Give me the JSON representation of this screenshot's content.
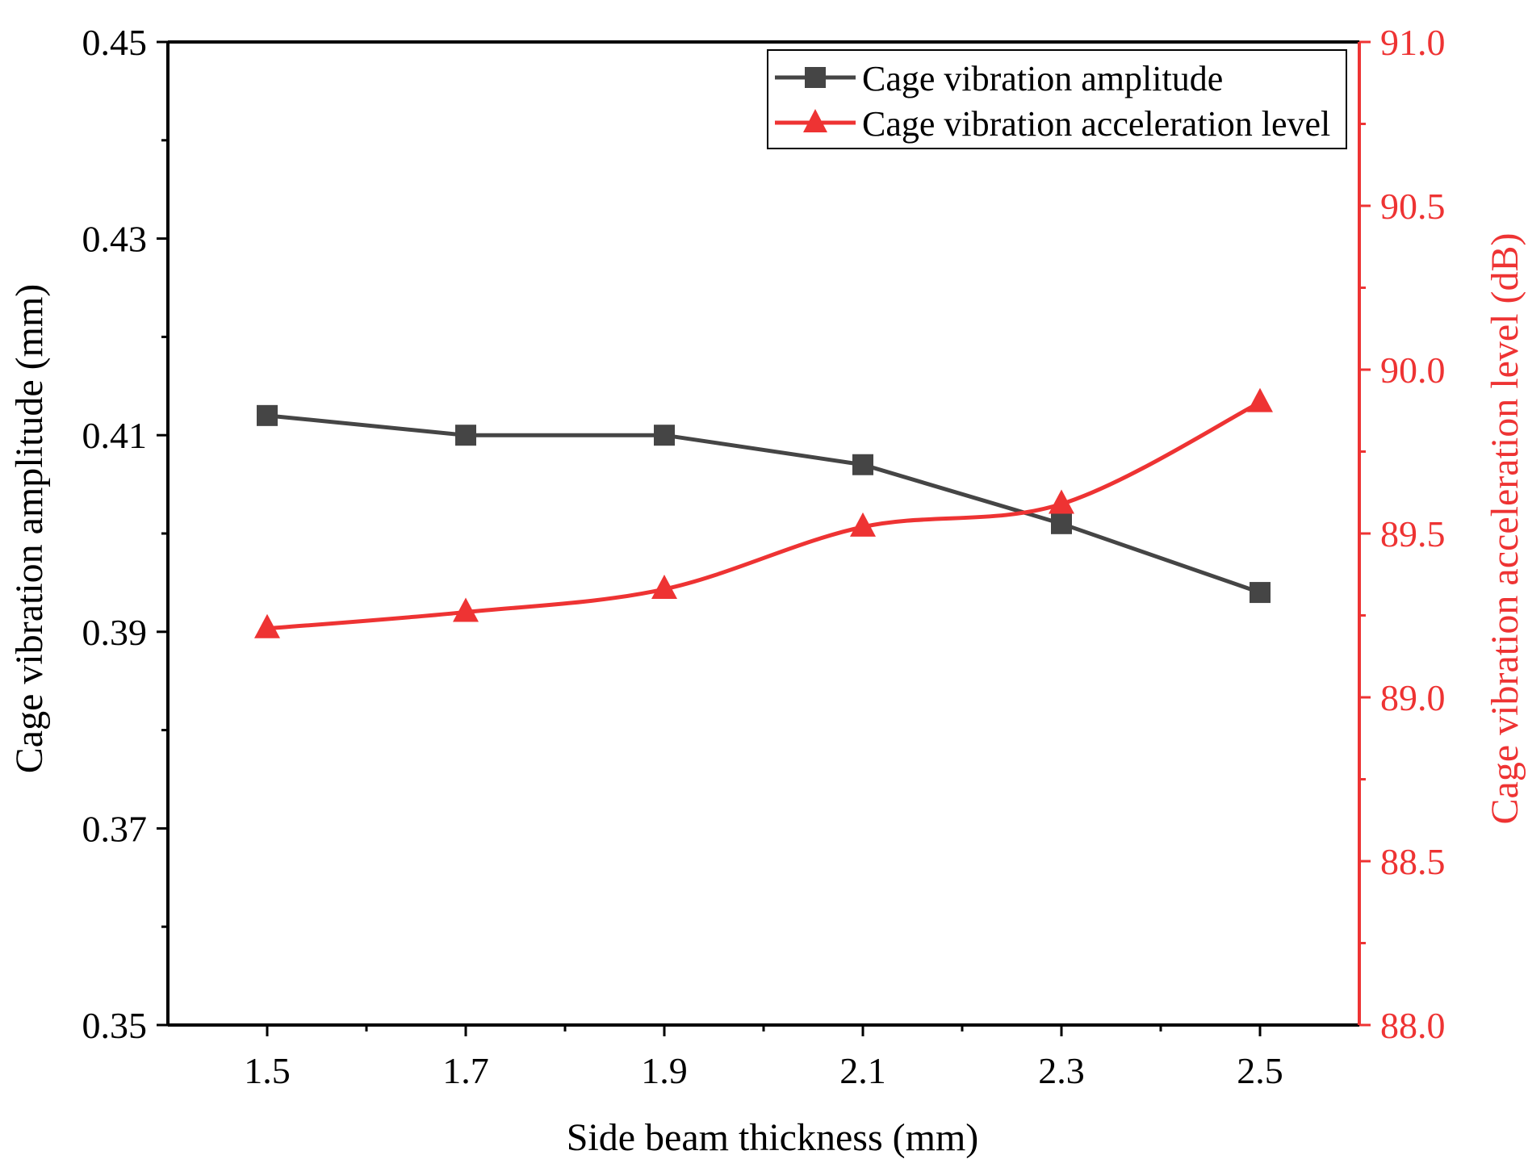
{
  "chart_data": {
    "type": "line",
    "x": [
      1.5,
      1.7,
      1.9,
      2.1,
      2.3,
      2.5
    ],
    "x_tick_labels": [
      "1.5",
      "1.7",
      "1.9",
      "2.1",
      "2.3",
      "2.5"
    ],
    "xlabel": "Side beam thickness (mm)",
    "xlim": [
      1.4,
      2.6
    ],
    "y_left": {
      "label": "Cage vibration amplitude (mm)",
      "lim": [
        0.35,
        0.45
      ],
      "ticks": [
        0.35,
        0.37,
        0.39,
        0.41,
        0.43,
        0.45
      ],
      "tick_labels": [
        "0.35",
        "0.37",
        "0.39",
        "0.41",
        "0.43",
        "0.45"
      ],
      "color": "#000000"
    },
    "y_right": {
      "label": "Cage vibration acceleration level (dB)",
      "lim": [
        88.0,
        91.0
      ],
      "ticks": [
        88.0,
        88.5,
        89.0,
        89.5,
        90.0,
        90.5,
        91.0
      ],
      "tick_labels": [
        "88.0",
        "88.5",
        "89.0",
        "89.5",
        "90.0",
        "90.5",
        "91.0"
      ],
      "color": "#ee3333"
    },
    "series": [
      {
        "name": "Cage vibration amplitude",
        "axis": "left",
        "marker": "square",
        "color": "#454545",
        "values": [
          0.412,
          0.41,
          0.41,
          0.407,
          0.401,
          0.394
        ]
      },
      {
        "name": "Cage vibration acceleration level",
        "axis": "right",
        "marker": "triangle",
        "color": "#ee3333",
        "smooth": true,
        "values": [
          89.21,
          89.26,
          89.33,
          89.52,
          89.59,
          89.9
        ]
      }
    ],
    "legend_position": "top-right"
  }
}
